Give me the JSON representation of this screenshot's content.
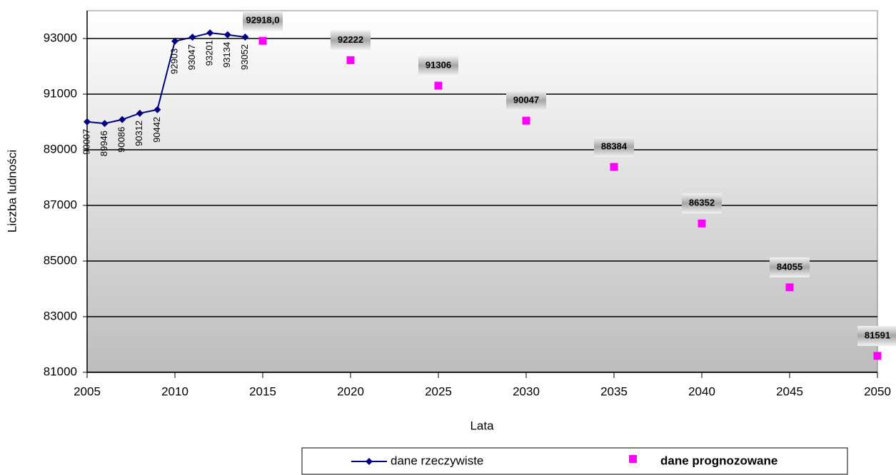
{
  "chart_data": {
    "type": "line",
    "x_label": "Lata",
    "y_label": "Liczba ludności",
    "xlim": [
      2005,
      2050
    ],
    "xticks": [
      2005,
      2010,
      2015,
      2020,
      2025,
      2030,
      2035,
      2040,
      2045,
      2050
    ],
    "ylim": [
      81000,
      94000
    ],
    "yticks": [
      81000,
      83000,
      85000,
      87000,
      89000,
      91000,
      93000
    ],
    "grid": true,
    "series": [
      {
        "name": "dane rzeczywiste",
        "color": "#000080",
        "marker": "diamond",
        "x": [
          2005,
          2006,
          2007,
          2008,
          2009,
          2010,
          2011,
          2012,
          2013,
          2014
        ],
        "values": [
          90007,
          89946,
          90086,
          90312,
          90442,
          92903,
          93047,
          93201,
          93134,
          93052
        ]
      },
      {
        "name": "dane prognozowane",
        "color": "#ff00ff",
        "marker": "square",
        "x": [
          2015,
          2020,
          2025,
          2030,
          2035,
          2040,
          2045,
          2050
        ],
        "values": [
          92918,
          92222,
          91306,
          90047,
          88384,
          86352,
          84055,
          81591
        ],
        "value_labels": [
          "92918,0",
          "92222",
          "91306",
          "90047",
          "88384",
          "86352",
          "84055",
          "81591"
        ]
      }
    ]
  }
}
